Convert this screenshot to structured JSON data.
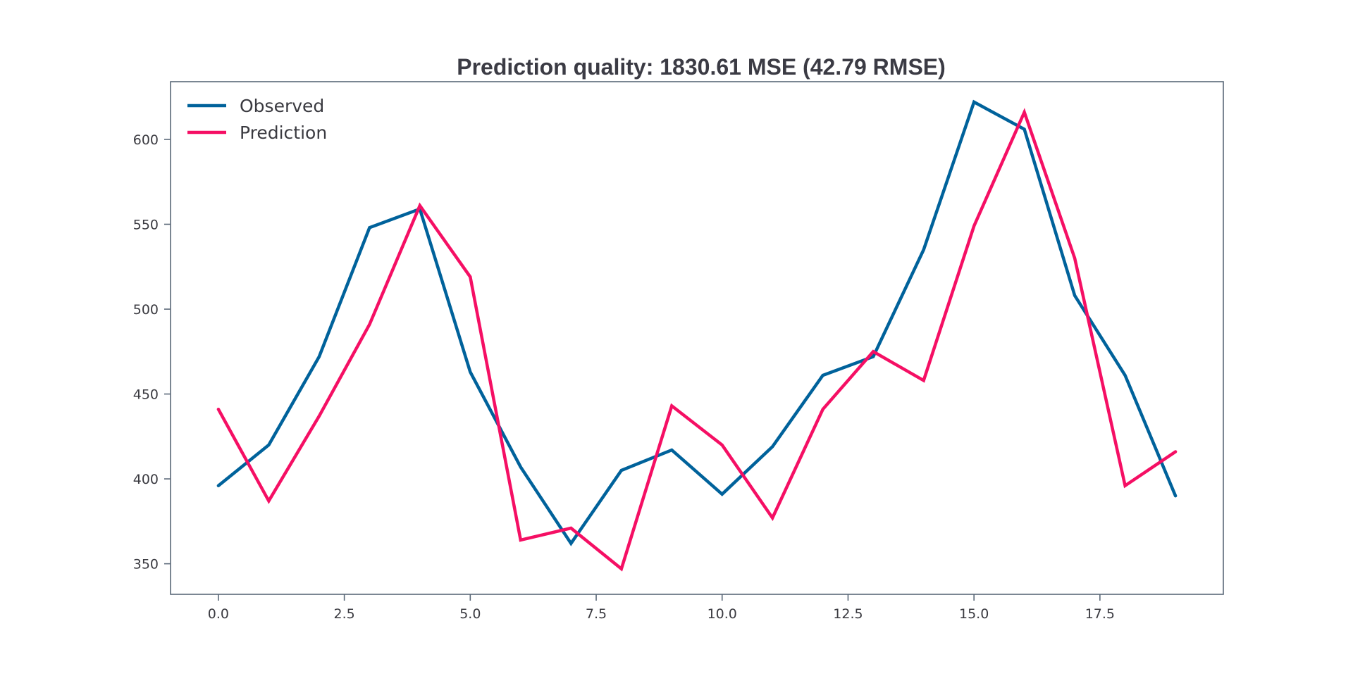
{
  "chart_data": {
    "type": "line",
    "title": "Prediction quality: 1830.61 MSE (42.79 RMSE)",
    "xlabel": "",
    "ylabel": "",
    "x": [
      0,
      1,
      2,
      3,
      4,
      5,
      6,
      7,
      8,
      9,
      10,
      11,
      12,
      13,
      14,
      15,
      16,
      17,
      18,
      19
    ],
    "xlim": [
      -0.95,
      19.95
    ],
    "ylim": [
      332,
      634
    ],
    "x_ticks": [
      0.0,
      2.5,
      5.0,
      7.5,
      10.0,
      12.5,
      15.0,
      17.5
    ],
    "x_tick_labels": [
      "0.0",
      "2.5",
      "5.0",
      "7.5",
      "10.0",
      "12.5",
      "15.0",
      "17.5"
    ],
    "y_ticks": [
      350,
      400,
      450,
      500,
      550,
      600
    ],
    "y_tick_labels": [
      "350",
      "400",
      "450",
      "500",
      "550",
      "600"
    ],
    "grid": false,
    "legend_position": "upper left",
    "series": [
      {
        "name": "Observed",
        "color": "#00629b",
        "values": [
          396,
          420,
          472,
          548,
          559,
          463,
          407,
          362,
          405,
          417,
          391,
          419,
          461,
          472,
          535,
          622,
          606,
          508,
          461,
          390
        ]
      },
      {
        "name": "Prediction",
        "color": "#f50f64",
        "values": [
          441,
          387,
          437,
          491,
          561,
          519,
          364,
          371,
          347,
          443,
          420,
          377,
          441,
          475,
          458,
          549,
          616,
          530,
          396,
          416
        ]
      }
    ]
  }
}
